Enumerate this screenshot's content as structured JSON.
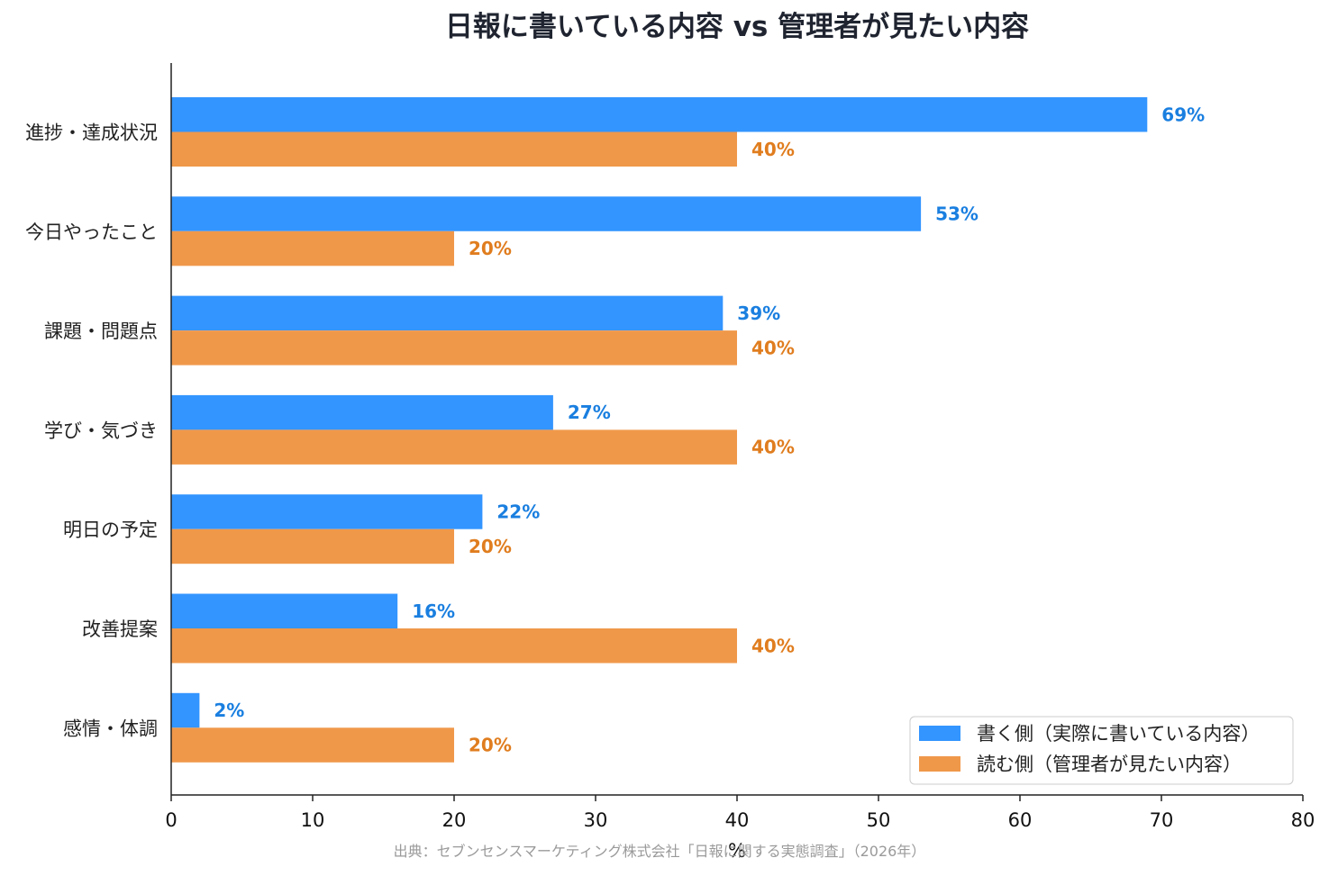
{
  "chart_data": {
    "type": "bar",
    "orientation": "horizontal",
    "title": "日報に書いている内容 vs 管理者が見たい内容",
    "xlabel": "%",
    "ylabel": "",
    "xlim": [
      0,
      80
    ],
    "xticks": [
      0,
      10,
      20,
      30,
      40,
      50,
      60,
      70,
      80
    ],
    "categories": [
      "進捗・達成状況",
      "今日やったこと",
      "課題・問題点",
      "学び・気づき",
      "明日の予定",
      "改善提案",
      "感情・体調"
    ],
    "series": [
      {
        "name": "書く側（実際に書いている内容）",
        "color": "#3395ff",
        "label_color": "#1a7fe0",
        "values": [
          69,
          53,
          39,
          27,
          22,
          16,
          2
        ],
        "labels": [
          "69%",
          "53%",
          "39%",
          "27%",
          "22%",
          "16%",
          "2%"
        ]
      },
      {
        "name": "読む側（管理者が見たい内容）",
        "color": "#f0984a",
        "label_color": "#e07d1f",
        "values": [
          40,
          20,
          40,
          40,
          20,
          40,
          20
        ],
        "labels": [
          "40%",
          "20%",
          "40%",
          "40%",
          "20%",
          "40%",
          "20%"
        ]
      }
    ],
    "legend": "bottom-right",
    "grid": false
  },
  "source_note": "出典：セブンセンスマーケティング株式会社「日報に関する実態調査」（2026年）"
}
